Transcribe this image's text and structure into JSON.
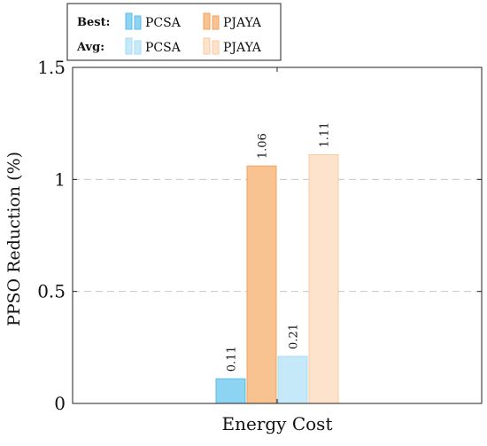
{
  "chart_data": {
    "type": "bar",
    "categories": [
      "Energy Cost"
    ],
    "series": [
      {
        "name": "PCSA",
        "group": "Best",
        "values": [
          0.11
        ],
        "labels": [
          "0.11"
        ],
        "color": "#8dd4f2",
        "stroke": "#5bbde6"
      },
      {
        "name": "PJAYA",
        "group": "Best",
        "values": [
          1.06
        ],
        "labels": [
          "1.06"
        ],
        "color": "#f8c291",
        "stroke": "#f0a35f"
      },
      {
        "name": "PCSA",
        "group": "Avg",
        "values": [
          0.21
        ],
        "labels": [
          "0.21"
        ],
        "color": "#c6e9fa",
        "stroke": "#a6dbf5"
      },
      {
        "name": "PJAYA",
        "group": "Avg",
        "values": [
          1.11
        ],
        "labels": [
          "1.11"
        ],
        "color": "#fde3cc",
        "stroke": "#f9c9a0"
      }
    ],
    "title": "",
    "xlabel": "",
    "ylabel": "PPSO Reduction (%)",
    "ylim": [
      0,
      1.5
    ],
    "yticks": [
      0,
      0.5,
      1,
      1.5
    ],
    "ytick_labels": [
      "0",
      "0.5",
      "1",
      "1.5"
    ],
    "grid": "horizontal dashed",
    "legend": {
      "placement": "top-left",
      "groups": [
        {
          "title": "Best:",
          "entries": [
            "PCSA",
            "PJAYA"
          ]
        },
        {
          "title": "Avg:",
          "entries": [
            "PCSA",
            "PJAYA"
          ]
        }
      ]
    }
  }
}
